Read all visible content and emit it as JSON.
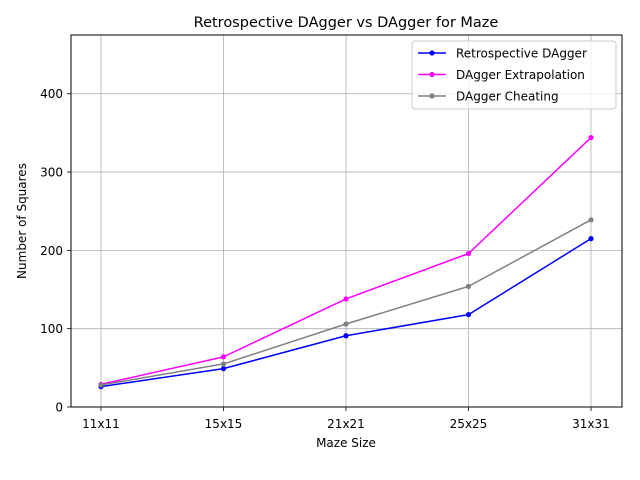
{
  "chart_data": {
    "type": "line",
    "title": "Retrospective DAgger vs DAgger for Maze",
    "xlabel": "Maze Size",
    "ylabel": "Number of Squares",
    "categories": [
      "11x11",
      "15x15",
      "21x21",
      "25x25",
      "31x31"
    ],
    "ylim": [
      0,
      475
    ],
    "yticks": [
      0,
      100,
      200,
      300,
      400
    ],
    "grid": true,
    "legend_position": "top-right",
    "series": [
      {
        "name": "Retrospective DAgger",
        "color": "#0000ff",
        "values": [
          26,
          49,
          91,
          118,
          215
        ]
      },
      {
        "name": "DAgger Extrapolation",
        "color": "#ff00ff",
        "values": [
          29,
          64,
          138,
          196,
          344
        ]
      },
      {
        "name": "DAgger Cheating",
        "color": "#808080",
        "values": [
          28,
          55,
          106,
          154,
          239
        ]
      }
    ]
  }
}
